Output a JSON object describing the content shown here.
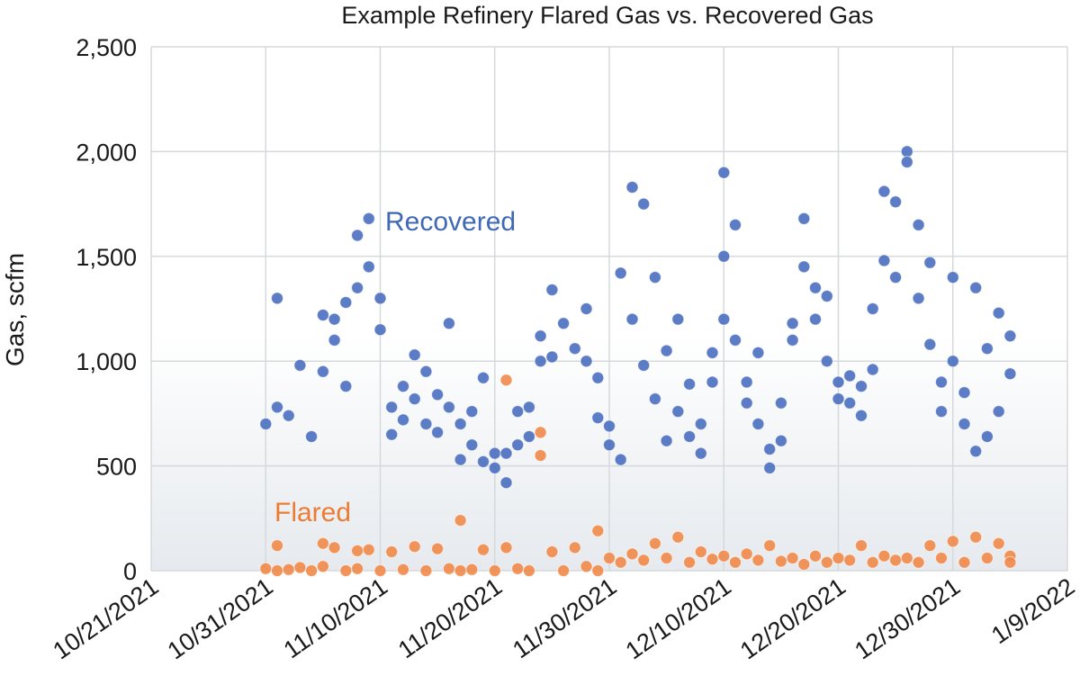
{
  "chart_data": {
    "type": "scatter",
    "title": "Example Refinery Flared Gas vs. Recovered Gas",
    "xlabel": "",
    "ylabel": "Gas, scfm",
    "ylim": [
      0,
      2500
    ],
    "yticks": [
      "0",
      "500",
      "1,000",
      "1,500",
      "2,000",
      "2,500"
    ],
    "xlim": [
      "2021-10-21",
      "2022-01-09"
    ],
    "xticks": [
      "10/21/2021",
      "10/31/2021",
      "11/10/2021",
      "11/20/2021",
      "11/30/2021",
      "12/10/2021",
      "12/20/2021",
      "12/30/2021",
      "1/9/2022"
    ],
    "grid": true,
    "series": [
      {
        "name": "Recovered",
        "color": "#4a6fbf",
        "label_color": "#3f68b5",
        "points": [
          [
            "2021-10-31",
            700
          ],
          [
            "2021-11-01",
            1300
          ],
          [
            "2021-11-01",
            780
          ],
          [
            "2021-11-02",
            740
          ],
          [
            "2021-11-03",
            980
          ],
          [
            "2021-11-04",
            640
          ],
          [
            "2021-11-05",
            1220
          ],
          [
            "2021-11-05",
            950
          ],
          [
            "2021-11-06",
            1100
          ],
          [
            "2021-11-06",
            1200
          ],
          [
            "2021-11-07",
            1280
          ],
          [
            "2021-11-07",
            880
          ],
          [
            "2021-11-08",
            1350
          ],
          [
            "2021-11-08",
            1600
          ],
          [
            "2021-11-09",
            1680
          ],
          [
            "2021-11-09",
            1450
          ],
          [
            "2021-11-10",
            1300
          ],
          [
            "2021-11-10",
            1150
          ],
          [
            "2021-11-11",
            780
          ],
          [
            "2021-11-11",
            650
          ],
          [
            "2021-11-12",
            880
          ],
          [
            "2021-11-12",
            720
          ],
          [
            "2021-11-13",
            1030
          ],
          [
            "2021-11-13",
            820
          ],
          [
            "2021-11-14",
            950
          ],
          [
            "2021-11-14",
            700
          ],
          [
            "2021-11-15",
            840
          ],
          [
            "2021-11-15",
            660
          ],
          [
            "2021-11-16",
            1180
          ],
          [
            "2021-11-16",
            780
          ],
          [
            "2021-11-17",
            700
          ],
          [
            "2021-11-17",
            530
          ],
          [
            "2021-11-18",
            760
          ],
          [
            "2021-11-18",
            600
          ],
          [
            "2021-11-19",
            920
          ],
          [
            "2021-11-19",
            520
          ],
          [
            "2021-11-20",
            560
          ],
          [
            "2021-11-20",
            490
          ],
          [
            "2021-11-21",
            420
          ],
          [
            "2021-11-21",
            560
          ],
          [
            "2021-11-22",
            760
          ],
          [
            "2021-11-22",
            600
          ],
          [
            "2021-11-23",
            640
          ],
          [
            "2021-11-23",
            780
          ],
          [
            "2021-11-24",
            1000
          ],
          [
            "2021-11-24",
            1120
          ],
          [
            "2021-11-25",
            1340
          ],
          [
            "2021-11-25",
            1020
          ],
          [
            "2021-11-26",
            1180
          ],
          [
            "2021-11-27",
            1060
          ],
          [
            "2021-11-28",
            1250
          ],
          [
            "2021-11-28",
            1000
          ],
          [
            "2021-11-29",
            920
          ],
          [
            "2021-11-29",
            730
          ],
          [
            "2021-11-30",
            600
          ],
          [
            "2021-11-30",
            690
          ],
          [
            "2021-12-01",
            530
          ],
          [
            "2021-12-01",
            1420
          ],
          [
            "2021-12-02",
            1830
          ],
          [
            "2021-12-02",
            1200
          ],
          [
            "2021-12-03",
            1750
          ],
          [
            "2021-12-03",
            980
          ],
          [
            "2021-12-04",
            820
          ],
          [
            "2021-12-04",
            1400
          ],
          [
            "2021-12-05",
            620
          ],
          [
            "2021-12-05",
            1050
          ],
          [
            "2021-12-06",
            1200
          ],
          [
            "2021-12-06",
            760
          ],
          [
            "2021-12-07",
            640
          ],
          [
            "2021-12-07",
            890
          ],
          [
            "2021-12-08",
            560
          ],
          [
            "2021-12-08",
            700
          ],
          [
            "2021-12-09",
            1040
          ],
          [
            "2021-12-09",
            900
          ],
          [
            "2021-12-10",
            1200
          ],
          [
            "2021-12-10",
            1500
          ],
          [
            "2021-12-10",
            1900
          ],
          [
            "2021-12-11",
            1650
          ],
          [
            "2021-12-11",
            1100
          ],
          [
            "2021-12-12",
            900
          ],
          [
            "2021-12-12",
            800
          ],
          [
            "2021-12-13",
            1040
          ],
          [
            "2021-12-13",
            700
          ],
          [
            "2021-12-14",
            580
          ],
          [
            "2021-12-14",
            490
          ],
          [
            "2021-12-15",
            620
          ],
          [
            "2021-12-15",
            800
          ],
          [
            "2021-12-16",
            1180
          ],
          [
            "2021-12-16",
            1100
          ],
          [
            "2021-12-17",
            1680
          ],
          [
            "2021-12-17",
            1450
          ],
          [
            "2021-12-18",
            1350
          ],
          [
            "2021-12-18",
            1200
          ],
          [
            "2021-12-19",
            1310
          ],
          [
            "2021-12-19",
            1000
          ],
          [
            "2021-12-20",
            900
          ],
          [
            "2021-12-20",
            820
          ],
          [
            "2021-12-21",
            800
          ],
          [
            "2021-12-21",
            930
          ],
          [
            "2021-12-22",
            740
          ],
          [
            "2021-12-22",
            880
          ],
          [
            "2021-12-23",
            1250
          ],
          [
            "2021-12-23",
            960
          ],
          [
            "2021-12-24",
            1480
          ],
          [
            "2021-12-24",
            1810
          ],
          [
            "2021-12-25",
            1400
          ],
          [
            "2021-12-25",
            1760
          ],
          [
            "2021-12-26",
            2000
          ],
          [
            "2021-12-26",
            1950
          ],
          [
            "2021-12-27",
            1650
          ],
          [
            "2021-12-27",
            1300
          ],
          [
            "2021-12-28",
            1470
          ],
          [
            "2021-12-28",
            1080
          ],
          [
            "2021-12-29",
            900
          ],
          [
            "2021-12-29",
            760
          ],
          [
            "2021-12-30",
            1400
          ],
          [
            "2021-12-30",
            1000
          ],
          [
            "2021-12-31",
            700
          ],
          [
            "2021-12-31",
            850
          ],
          [
            "2022-01-01",
            570
          ],
          [
            "2022-01-01",
            1350
          ],
          [
            "2022-01-02",
            640
          ],
          [
            "2022-01-02",
            1060
          ],
          [
            "2022-01-03",
            760
          ],
          [
            "2022-01-03",
            1230
          ],
          [
            "2022-01-04",
            940
          ],
          [
            "2022-01-04",
            1120
          ]
        ]
      },
      {
        "name": "Flared",
        "color": "#ef8a4a",
        "label_color": "#ec7c34",
        "points": [
          [
            "2021-10-31",
            10
          ],
          [
            "2021-11-01",
            0
          ],
          [
            "2021-11-01",
            120
          ],
          [
            "2021-11-02",
            5
          ],
          [
            "2021-11-03",
            15
          ],
          [
            "2021-11-04",
            0
          ],
          [
            "2021-11-05",
            130
          ],
          [
            "2021-11-05",
            20
          ],
          [
            "2021-11-06",
            110
          ],
          [
            "2021-11-07",
            0
          ],
          [
            "2021-11-08",
            95
          ],
          [
            "2021-11-08",
            10
          ],
          [
            "2021-11-09",
            100
          ],
          [
            "2021-11-10",
            0
          ],
          [
            "2021-11-11",
            90
          ],
          [
            "2021-11-12",
            5
          ],
          [
            "2021-11-13",
            115
          ],
          [
            "2021-11-14",
            0
          ],
          [
            "2021-11-15",
            105
          ],
          [
            "2021-11-16",
            10
          ],
          [
            "2021-11-17",
            0
          ],
          [
            "2021-11-17",
            240
          ],
          [
            "2021-11-18",
            5
          ],
          [
            "2021-11-19",
            100
          ],
          [
            "2021-11-20",
            0
          ],
          [
            "2021-11-21",
            910
          ],
          [
            "2021-11-21",
            110
          ],
          [
            "2021-11-22",
            10
          ],
          [
            "2021-11-23",
            0
          ],
          [
            "2021-11-24",
            660
          ],
          [
            "2021-11-24",
            550
          ],
          [
            "2021-11-25",
            90
          ],
          [
            "2021-11-26",
            0
          ],
          [
            "2021-11-27",
            110
          ],
          [
            "2021-11-28",
            20
          ],
          [
            "2021-11-29",
            190
          ],
          [
            "2021-11-29",
            0
          ],
          [
            "2021-11-30",
            60
          ],
          [
            "2021-12-01",
            40
          ],
          [
            "2021-12-02",
            80
          ],
          [
            "2021-12-03",
            50
          ],
          [
            "2021-12-04",
            130
          ],
          [
            "2021-12-05",
            60
          ],
          [
            "2021-12-06",
            160
          ],
          [
            "2021-12-07",
            40
          ],
          [
            "2021-12-08",
            90
          ],
          [
            "2021-12-09",
            55
          ],
          [
            "2021-12-10",
            70
          ],
          [
            "2021-12-11",
            40
          ],
          [
            "2021-12-12",
            80
          ],
          [
            "2021-12-13",
            50
          ],
          [
            "2021-12-14",
            120
          ],
          [
            "2021-12-15",
            45
          ],
          [
            "2021-12-16",
            60
          ],
          [
            "2021-12-17",
            30
          ],
          [
            "2021-12-18",
            70
          ],
          [
            "2021-12-19",
            40
          ],
          [
            "2021-12-20",
            60
          ],
          [
            "2021-12-21",
            50
          ],
          [
            "2021-12-22",
            120
          ],
          [
            "2021-12-23",
            40
          ],
          [
            "2021-12-24",
            70
          ],
          [
            "2021-12-25",
            50
          ],
          [
            "2021-12-26",
            60
          ],
          [
            "2021-12-27",
            40
          ],
          [
            "2021-12-28",
            120
          ],
          [
            "2021-12-29",
            60
          ],
          [
            "2021-12-30",
            140
          ],
          [
            "2021-12-31",
            40
          ],
          [
            "2022-01-01",
            160
          ],
          [
            "2022-01-02",
            60
          ],
          [
            "2022-01-03",
            130
          ],
          [
            "2022-01-04",
            70
          ],
          [
            "2022-01-04",
            40
          ]
        ]
      }
    ]
  }
}
